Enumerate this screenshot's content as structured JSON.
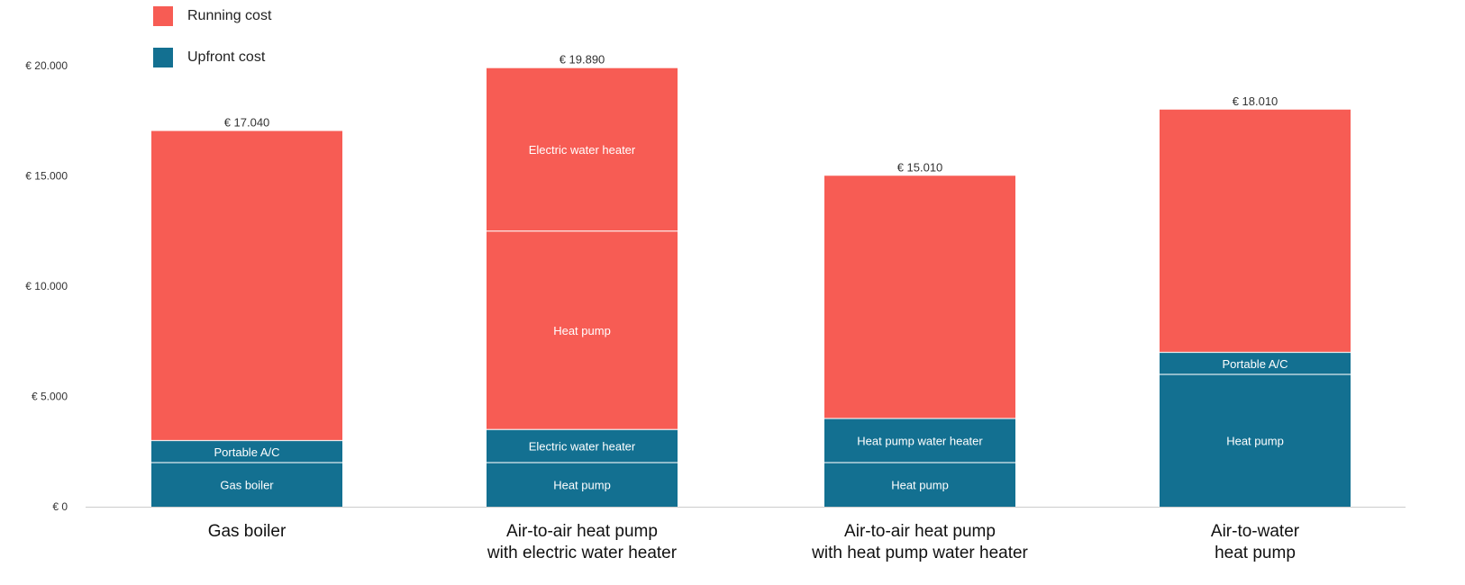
{
  "chart_data": {
    "type": "bar",
    "stacked": true,
    "title": "",
    "xlabel": "",
    "ylabel": "",
    "ylim": [
      0,
      20000
    ],
    "yticks": [
      0,
      5000,
      10000,
      15000,
      20000
    ],
    "ytick_labels": [
      "€ 0",
      "€ 5.000",
      "€ 10.000",
      "€ 15.000",
      "€ 20.000"
    ],
    "grid": false,
    "legend": {
      "placement": "top-left",
      "items": [
        {
          "name": "Running cost",
          "color": "#f75c54"
        },
        {
          "name": "Upfront cost",
          "color": "#137091"
        }
      ]
    },
    "categories": [
      [
        "Gas boiler"
      ],
      [
        "Air-to-air heat pump",
        "with electric water heater"
      ],
      [
        "Air-to-air heat pump",
        "with heat pump water heater"
      ],
      [
        "Air-to-water",
        "heat pump"
      ]
    ],
    "totals": [
      17040,
      19890,
      15010,
      18010
    ],
    "total_labels": [
      "€ 17.040",
      "€ 19.890",
      "€ 15.010",
      "€ 18.010"
    ],
    "stacks": [
      [
        {
          "series": "Upfront cost",
          "label": "Gas boiler",
          "value": 2000
        },
        {
          "series": "Upfront cost",
          "label": "Portable A/C",
          "value": 1000
        },
        {
          "series": "Running cost",
          "label": "",
          "value": 14040
        }
      ],
      [
        {
          "series": "Upfront cost",
          "label": "Heat pump",
          "value": 2000
        },
        {
          "series": "Upfront cost",
          "label": "Electric water heater",
          "value": 1500
        },
        {
          "series": "Running cost",
          "label": "Heat pump",
          "value": 9000
        },
        {
          "series": "Running cost",
          "label": "Electric water heater",
          "value": 7390
        }
      ],
      [
        {
          "series": "Upfront cost",
          "label": "Heat pump",
          "value": 2000
        },
        {
          "series": "Upfront cost",
          "label": "Heat pump water heater",
          "value": 2000
        },
        {
          "series": "Running cost",
          "label": "",
          "value": 11010
        }
      ],
      [
        {
          "series": "Upfront cost",
          "label": "Heat pump",
          "value": 6000
        },
        {
          "series": "Upfront cost",
          "label": "Portable A/C",
          "value": 1000
        },
        {
          "series": "Running cost",
          "label": "",
          "value": 11010
        }
      ]
    ]
  }
}
